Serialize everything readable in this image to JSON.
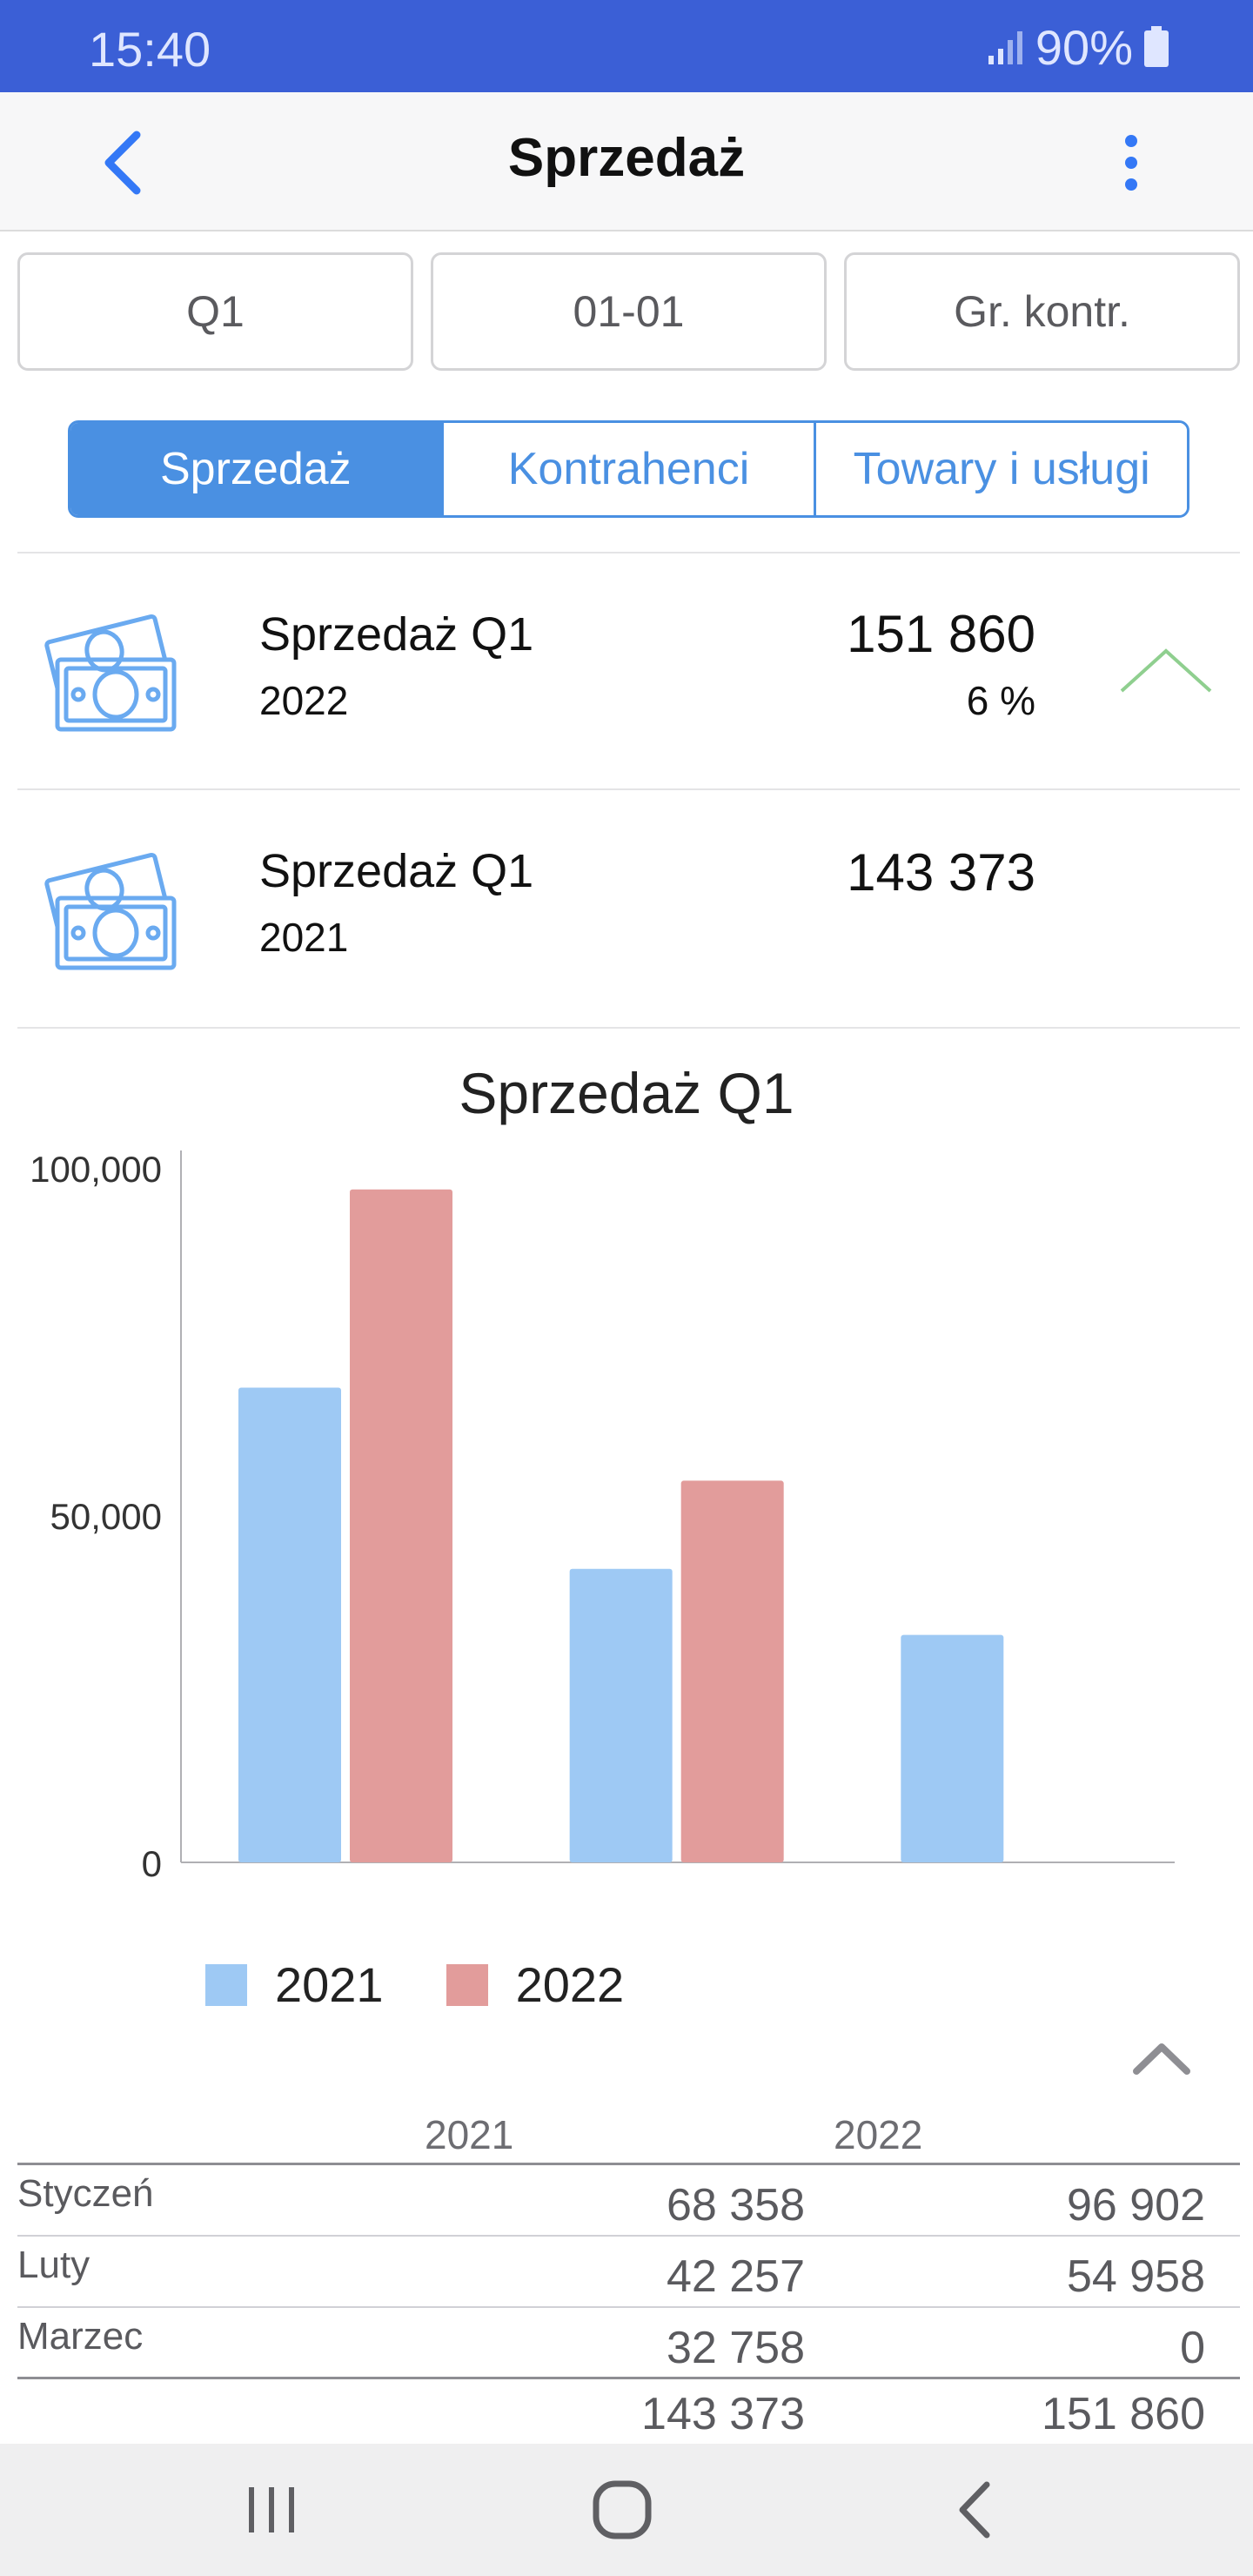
{
  "status_bar": {
    "time": "15:40",
    "battery": "90%"
  },
  "header": {
    "title": "Sprzedaż",
    "back_icon": "chevron-left-icon",
    "more_icon": "more-vertical-icon"
  },
  "filters": [
    "Q1",
    "01-01",
    "Gr. kontr."
  ],
  "tabs": [
    {
      "label": "Sprzedaż",
      "active": true
    },
    {
      "label": "Kontrahenci",
      "active": false
    },
    {
      "label": "Towary i usługi",
      "active": false
    }
  ],
  "summary": [
    {
      "title": "Sprzedaż Q1",
      "year": "2022",
      "value": "151 860",
      "percent": "6 %",
      "trend": "up",
      "icon": "money-icon"
    },
    {
      "title": "Sprzedaż Q1",
      "year": "2021",
      "value": "143 373",
      "percent": "",
      "trend": "",
      "icon": "money-icon"
    }
  ],
  "colors": {
    "series_2021": "#9ec9f4",
    "series_2022": "#e29c9b",
    "accent": "#4a90e2",
    "trend_up": "#8fcf8f",
    "status_bar": "#3b5fd6"
  },
  "chart_data": {
    "type": "bar",
    "title": "Sprzedaż Q1",
    "categories": [
      "Styczeń",
      "Luty",
      "Marzec"
    ],
    "series": [
      {
        "name": "2021",
        "values": [
          68358,
          42257,
          32758
        ]
      },
      {
        "name": "2022",
        "values": [
          96902,
          54958,
          0
        ]
      }
    ],
    "ylim": [
      0,
      100000
    ],
    "yticks": [
      "0",
      "50,000",
      "100,000"
    ],
    "legend": "bottom",
    "grid": false
  },
  "table": {
    "headers": [
      "2021",
      "2022"
    ],
    "rows": [
      {
        "label": "Styczeń",
        "v2021": "68 358",
        "v2022": "96 902"
      },
      {
        "label": "Luty",
        "v2021": "42 257",
        "v2022": "54 958"
      },
      {
        "label": "Marzec",
        "v2021": "32 758",
        "v2022": "0"
      }
    ],
    "totals": {
      "v2021": "143 373",
      "v2022": "151 860"
    }
  }
}
